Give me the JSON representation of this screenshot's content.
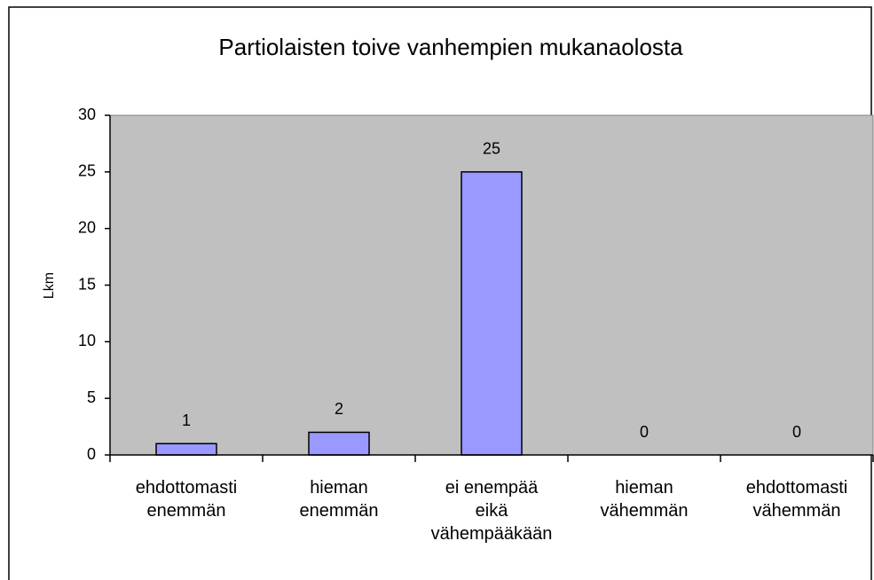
{
  "chart_data": {
    "type": "bar",
    "title": "Partiolaisten toive vanhempien mukanaolosta",
    "y_label": "Lkm",
    "categories": [
      "ehdottomasti enemmän",
      "hieman enemmän",
      "ei enempää eikä vähempääkään",
      "hieman vähemmän",
      "ehdottomasti vähemmän"
    ],
    "values": [
      1,
      2,
      25,
      0,
      0
    ],
    "color": "#9999ff",
    "plot_background": "#c0c0c0",
    "ylim": [
      0,
      30
    ],
    "yticks": [
      0,
      5,
      10,
      15,
      20,
      25,
      30
    ],
    "grid": false
  }
}
